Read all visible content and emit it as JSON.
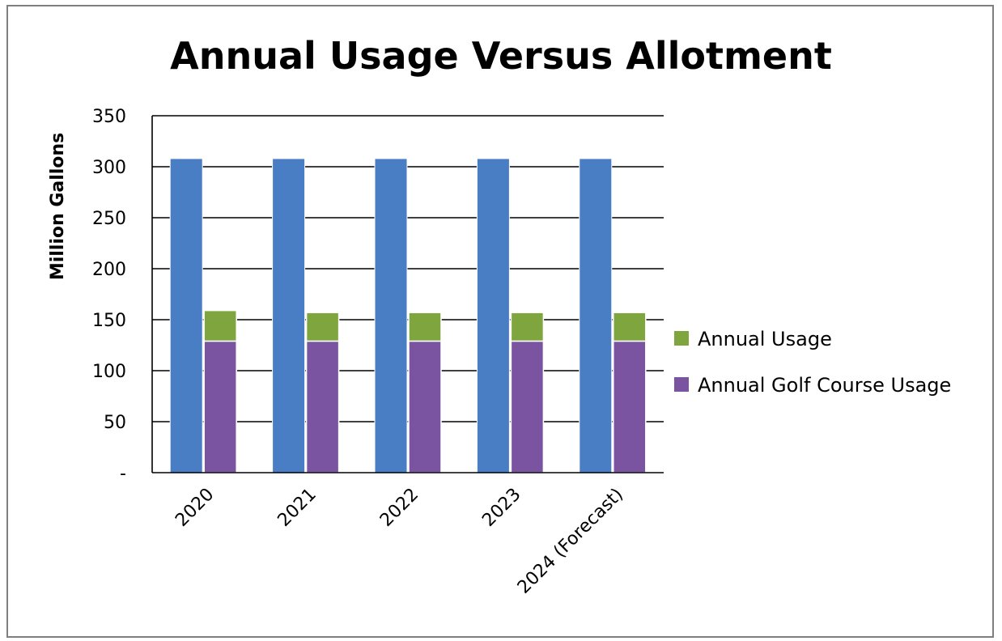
{
  "chart_data": {
    "type": "bar",
    "title": "Annual Usage Versus Allotment",
    "xlabel": "",
    "ylabel": "Million Gallons",
    "ylim": [
      0,
      350
    ],
    "yticks": [
      0,
      50,
      100,
      150,
      200,
      250,
      300,
      350
    ],
    "ytick_labels": [
      "-",
      "50",
      "100",
      "150",
      "200",
      "250",
      "300",
      "350"
    ],
    "grid": true,
    "legend_position": "right",
    "categories": [
      "2020",
      "2021",
      "2022",
      "2023",
      "2024 (Forecast)"
    ],
    "series": [
      {
        "values": [
          308,
          308,
          308,
          308,
          308
        ],
        "color": "#4a7ec4",
        "stack": "allotment"
      },
      {
        "name": "Annual Golf Course Usage",
        "values": [
          129,
          129,
          129,
          129,
          129
        ],
        "color": "#7a54a0",
        "stack": "usage"
      },
      {
        "name": "Annual Usage",
        "values": [
          30,
          28,
          28,
          28,
          28
        ],
        "color": "#7fa63e",
        "stack": "usage"
      }
    ],
    "legend": [
      {
        "label": "Annual Usage",
        "color": "#7fa63e"
      },
      {
        "label": "Annual Golf Course Usage",
        "color": "#7a54a0"
      }
    ]
  }
}
